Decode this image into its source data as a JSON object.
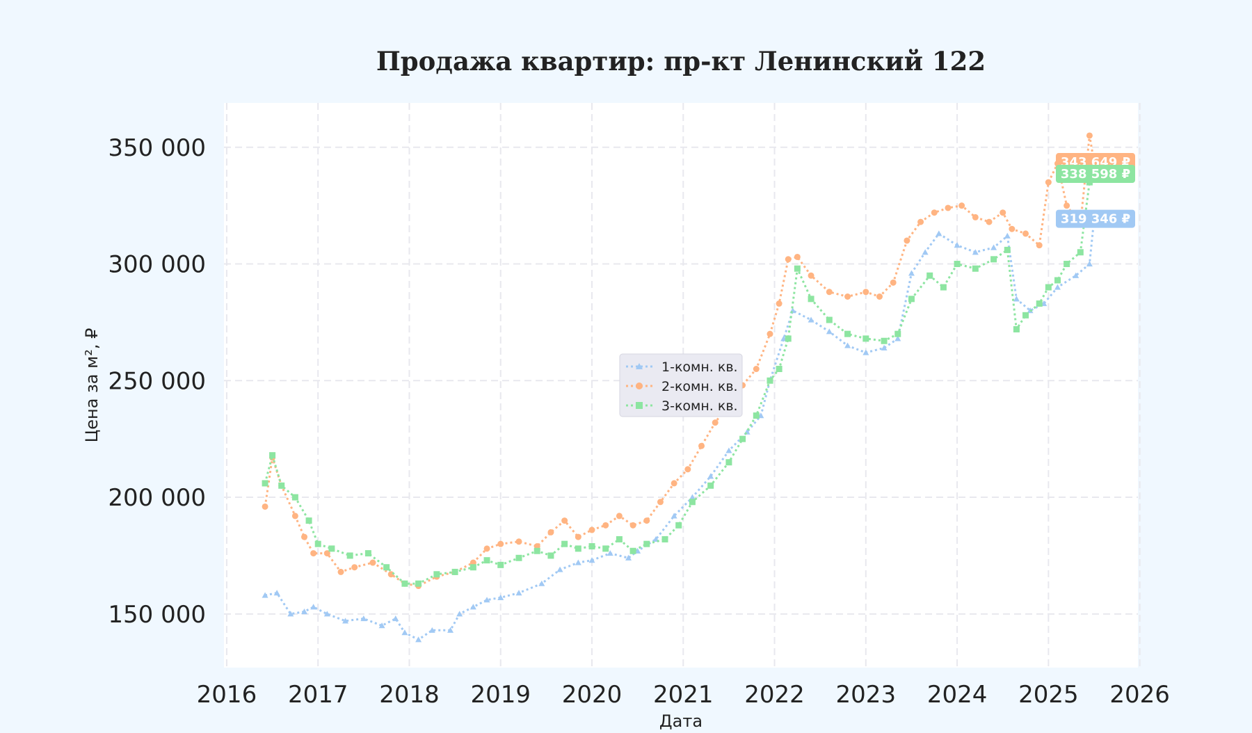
{
  "chart_data": {
    "type": "line",
    "title": "Продажа квартир: пр-кт Ленинский 122",
    "xlabel": "Дата",
    "ylabel": "Цена за м², ₽",
    "xlim": [
      2015.97,
      2025.98
    ],
    "ylim": [
      127000,
      369000
    ],
    "x_ticks": [
      2016,
      2017,
      2018,
      2019,
      2020,
      2021,
      2022,
      2023,
      2024,
      2025,
      2026
    ],
    "x_tick_labels": [
      "2016",
      "2017",
      "2018",
      "2019",
      "2020",
      "2021",
      "2022",
      "2023",
      "2024",
      "2025",
      "2026"
    ],
    "y_ticks": [
      150000,
      200000,
      250000,
      300000,
      350000
    ],
    "y_tick_labels": [
      "150 000",
      "200 000",
      "250 000",
      "300 000",
      "350 000"
    ],
    "grid": true,
    "legend_position": "center",
    "series": [
      {
        "name": "1-комн. кв.",
        "color": "#a1c9f4",
        "marker": "triangle",
        "end_label": "319 346 ₽",
        "x": [
          2016.42,
          2016.55,
          2016.7,
          2016.85,
          2016.95,
          2017.1,
          2017.3,
          2017.5,
          2017.7,
          2017.85,
          2017.95,
          2018.1,
          2018.25,
          2018.45,
          2018.55,
          2018.7,
          2018.85,
          2019.0,
          2019.2,
          2019.45,
          2019.65,
          2019.85,
          2020.0,
          2020.2,
          2020.4,
          2020.5,
          2020.7,
          2020.9,
          2021.1,
          2021.3,
          2021.5,
          2021.7,
          2021.85,
          2021.95,
          2022.1,
          2022.2,
          2022.4,
          2022.6,
          2022.8,
          2023.0,
          2023.2,
          2023.35,
          2023.5,
          2023.65,
          2023.8,
          2024.0,
          2024.2,
          2024.4,
          2024.55,
          2024.65,
          2024.8,
          2024.95,
          2025.1,
          2025.3,
          2025.45,
          2025.5
        ],
        "y": [
          158000,
          159000,
          150000,
          151000,
          153000,
          150000,
          147000,
          148000,
          145000,
          148000,
          142000,
          139000,
          143000,
          143000,
          150000,
          153000,
          156000,
          157000,
          159000,
          163000,
          169000,
          172000,
          173000,
          176000,
          174000,
          177000,
          182000,
          192000,
          200000,
          209000,
          220000,
          228000,
          235000,
          250000,
          268000,
          280000,
          276000,
          271000,
          265000,
          262000,
          264000,
          268000,
          296000,
          305000,
          313000,
          308000,
          305000,
          307000,
          312000,
          285000,
          280000,
          283000,
          290000,
          295000,
          300000,
          319346
        ]
      },
      {
        "name": "2-комн. кв.",
        "color": "#ffb482",
        "marker": "circle",
        "end_label": "343 649 ₽",
        "x": [
          2016.42,
          2016.5,
          2016.6,
          2016.75,
          2016.85,
          2016.95,
          2017.1,
          2017.25,
          2017.4,
          2017.6,
          2017.8,
          2017.95,
          2018.1,
          2018.3,
          2018.5,
          2018.7,
          2018.85,
          2019.0,
          2019.2,
          2019.4,
          2019.55,
          2019.7,
          2019.85,
          2020.0,
          2020.15,
          2020.3,
          2020.45,
          2020.6,
          2020.75,
          2020.9,
          2021.05,
          2021.2,
          2021.35,
          2021.5,
          2021.65,
          2021.8,
          2021.95,
          2022.05,
          2022.15,
          2022.25,
          2022.4,
          2022.6,
          2022.8,
          2023.0,
          2023.15,
          2023.3,
          2023.45,
          2023.6,
          2023.75,
          2023.9,
          2024.05,
          2024.2,
          2024.35,
          2024.5,
          2024.6,
          2024.75,
          2024.9,
          2025.0,
          2025.1,
          2025.2,
          2025.35,
          2025.45,
          2025.5
        ],
        "y": [
          196000,
          217000,
          205000,
          192000,
          183000,
          176000,
          176000,
          168000,
          170000,
          172000,
          167000,
          163000,
          162000,
          166000,
          168000,
          172000,
          178000,
          180000,
          181000,
          179000,
          185000,
          190000,
          183000,
          186000,
          188000,
          192000,
          188000,
          190000,
          198000,
          206000,
          212000,
          222000,
          232000,
          240000,
          248000,
          255000,
          270000,
          283000,
          302000,
          303000,
          295000,
          288000,
          286000,
          288000,
          286000,
          292000,
          310000,
          318000,
          322000,
          324000,
          325000,
          320000,
          318000,
          322000,
          315000,
          313000,
          308000,
          335000,
          343000,
          325000,
          317000,
          355000,
          343649
        ]
      },
      {
        "name": "3-комн. кв.",
        "color": "#8de5a1",
        "marker": "square",
        "end_label": "338 598 ₽",
        "x": [
          2016.42,
          2016.5,
          2016.6,
          2016.75,
          2016.9,
          2017.0,
          2017.15,
          2017.35,
          2017.55,
          2017.75,
          2017.95,
          2018.1,
          2018.3,
          2018.5,
          2018.7,
          2018.85,
          2019.0,
          2019.2,
          2019.4,
          2019.55,
          2019.7,
          2019.85,
          2020.0,
          2020.15,
          2020.3,
          2020.45,
          2020.6,
          2020.8,
          2020.95,
          2021.1,
          2021.3,
          2021.5,
          2021.65,
          2021.8,
          2021.95,
          2022.05,
          2022.15,
          2022.25,
          2022.4,
          2022.6,
          2022.8,
          2023.0,
          2023.2,
          2023.35,
          2023.5,
          2023.7,
          2023.85,
          2024.0,
          2024.2,
          2024.4,
          2024.55,
          2024.65,
          2024.75,
          2024.9,
          2025.0,
          2025.1,
          2025.2,
          2025.35,
          2025.45,
          2025.5
        ],
        "y": [
          206000,
          218000,
          205000,
          200000,
          190000,
          180000,
          178000,
          175000,
          176000,
          170000,
          163000,
          163000,
          167000,
          168000,
          170000,
          173000,
          171000,
          174000,
          177000,
          175000,
          180000,
          178000,
          179000,
          178000,
          182000,
          177000,
          180000,
          182000,
          188000,
          198000,
          205000,
          215000,
          225000,
          235000,
          250000,
          255000,
          268000,
          298000,
          285000,
          276000,
          270000,
          268000,
          267000,
          270000,
          285000,
          295000,
          290000,
          300000,
          298000,
          302000,
          306000,
          272000,
          278000,
          283000,
          290000,
          293000,
          300000,
          305000,
          335000,
          338598
        ]
      }
    ]
  }
}
